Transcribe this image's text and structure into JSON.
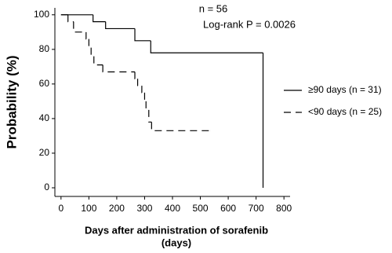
{
  "chart_data": {
    "type": "step",
    "xlabel": [
      "Days after administration of sorafenib",
      "(days)"
    ],
    "ylabel": "Probability (%)",
    "annotations": [
      "n = 56",
      "Log-rank P = 0.0026"
    ],
    "xlim": [
      -22,
      822
    ],
    "ylim": [
      -5,
      104
    ],
    "xticks": [
      0,
      100,
      200,
      300,
      400,
      500,
      600,
      700,
      800
    ],
    "yticks": [
      0,
      20,
      40,
      60,
      80,
      100
    ],
    "series": [
      {
        "name": "≥90 days (n = 31)",
        "color": "#000000",
        "dash": false,
        "x": [
          0,
          115,
          160,
          265,
          322,
          725
        ],
        "values": [
          100,
          96,
          92,
          85,
          78,
          0
        ]
      },
      {
        "name": "<90 days (n = 25)",
        "color": "#000000",
        "dash": true,
        "x": [
          0,
          25,
          45,
          90,
          100,
          108,
          118,
          150,
          265,
          275,
          290,
          300,
          305,
          315,
          325,
          535
        ],
        "values": [
          100,
          96,
          90,
          86,
          81,
          76,
          71,
          67,
          63,
          59,
          55,
          50,
          45,
          38,
          33,
          33
        ]
      }
    ]
  }
}
